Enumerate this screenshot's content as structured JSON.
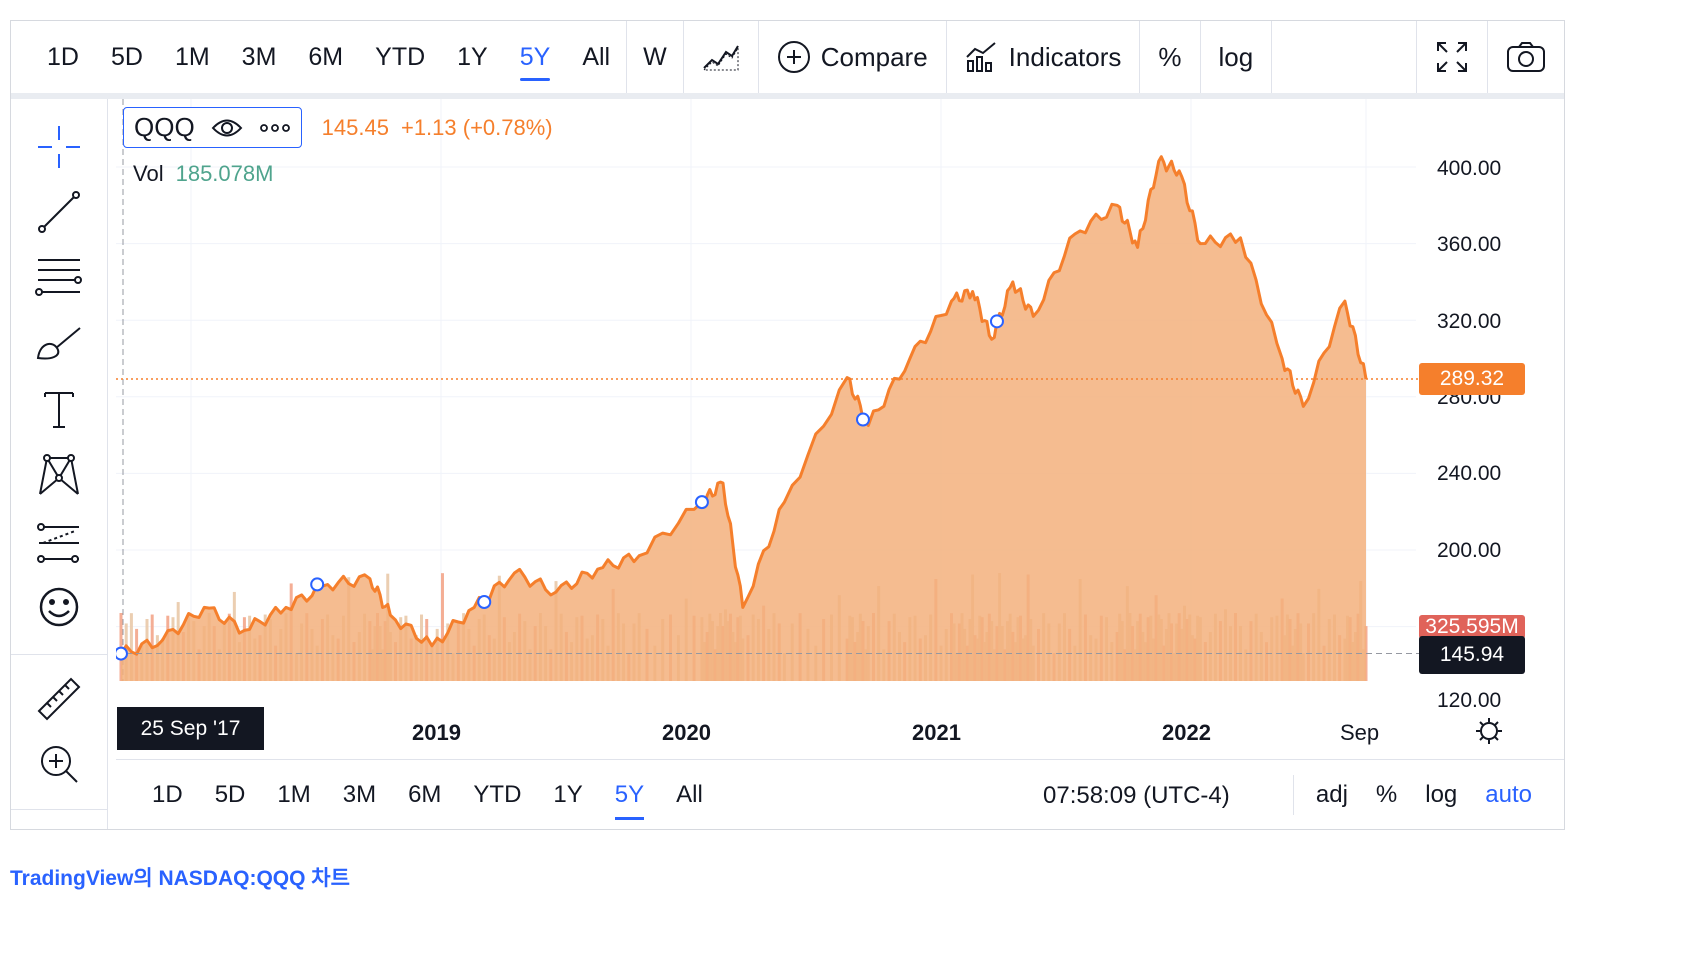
{
  "toolbar": {
    "ranges": [
      "1D",
      "5D",
      "1M",
      "3M",
      "6M",
      "YTD",
      "1Y",
      "5Y",
      "All"
    ],
    "active_range": "5Y",
    "interval": "W",
    "compare_label": "Compare",
    "indicators_label": "Indicators",
    "percent_label": "%",
    "log_label": "log"
  },
  "legend": {
    "symbol": "QQQ",
    "price": "145.45",
    "change": "+1.13 (+0.78%)",
    "vol_label": "Vol",
    "vol_value": "185.078M"
  },
  "price_axis": [
    "400.00",
    "360.00",
    "320.00",
    "280.00",
    "240.00",
    "200.00",
    "120.00"
  ],
  "price_tags": {
    "last_price": "289.32",
    "volume": "325.595M",
    "crosshair_price": "145.94"
  },
  "time_axis": {
    "crosshair_date": "25 Sep '17",
    "labels": [
      "2019",
      "2020",
      "2021",
      "2022",
      "Sep"
    ]
  },
  "bottombar": {
    "ranges": [
      "1D",
      "5D",
      "1M",
      "3M",
      "6M",
      "YTD",
      "1Y",
      "5Y",
      "All"
    ],
    "active_range": "5Y",
    "time": "07:58:09 (UTC-4)",
    "adj": "adj",
    "percent": "%",
    "log": "log",
    "auto": "auto"
  },
  "footer": "TradingView의 NASDAQ:QQQ 차트",
  "colors": {
    "line": "#f57f2c",
    "fill": "#f3b07c",
    "accent": "#2962ff",
    "dark": "#131722"
  },
  "chart_data": {
    "type": "area",
    "series": [
      {
        "values": [
          {
            "x": "2017-09",
            "y": 145.9
          },
          {
            "x": "2017-11",
            "y": 153
          },
          {
            "x": "2018-01",
            "y": 170
          },
          {
            "x": "2018-03",
            "y": 158
          },
          {
            "x": "2018-05",
            "y": 170
          },
          {
            "x": "2018-07",
            "y": 182
          },
          {
            "x": "2018-09",
            "y": 185
          },
          {
            "x": "2018-10",
            "y": 166
          },
          {
            "x": "2018-12",
            "y": 150
          },
          {
            "x": "2019-02",
            "y": 170
          },
          {
            "x": "2019-04",
            "y": 188
          },
          {
            "x": "2019-06",
            "y": 178
          },
          {
            "x": "2019-08",
            "y": 190
          },
          {
            "x": "2019-10",
            "y": 197
          },
          {
            "x": "2020-01",
            "y": 225
          },
          {
            "x": "2020-02",
            "y": 235
          },
          {
            "x": "2020-03",
            "y": 170
          },
          {
            "x": "2020-05",
            "y": 225
          },
          {
            "x": "2020-08",
            "y": 290
          },
          {
            "x": "2020-09",
            "y": 265
          },
          {
            "x": "2020-11",
            "y": 300
          },
          {
            "x": "2021-01",
            "y": 330
          },
          {
            "x": "2021-02",
            "y": 335
          },
          {
            "x": "2021-03",
            "y": 310
          },
          {
            "x": "2021-04",
            "y": 340
          },
          {
            "x": "2021-05",
            "y": 322
          },
          {
            "x": "2021-07",
            "y": 365
          },
          {
            "x": "2021-09",
            "y": 380
          },
          {
            "x": "2021-10",
            "y": 358
          },
          {
            "x": "2021-11",
            "y": 403
          },
          {
            "x": "2021-12",
            "y": 398
          },
          {
            "x": "2022-01",
            "y": 360
          },
          {
            "x": "2022-03",
            "y": 363
          },
          {
            "x": "2022-05",
            "y": 300
          },
          {
            "x": "2022-06",
            "y": 275
          },
          {
            "x": "2022-08",
            "y": 330
          },
          {
            "x": "2022-09",
            "y": 289.3
          }
        ]
      }
    ],
    "ylim": [
      110,
      420
    ],
    "last": 289.32,
    "volume_last": "325.595M",
    "grid": true
  }
}
